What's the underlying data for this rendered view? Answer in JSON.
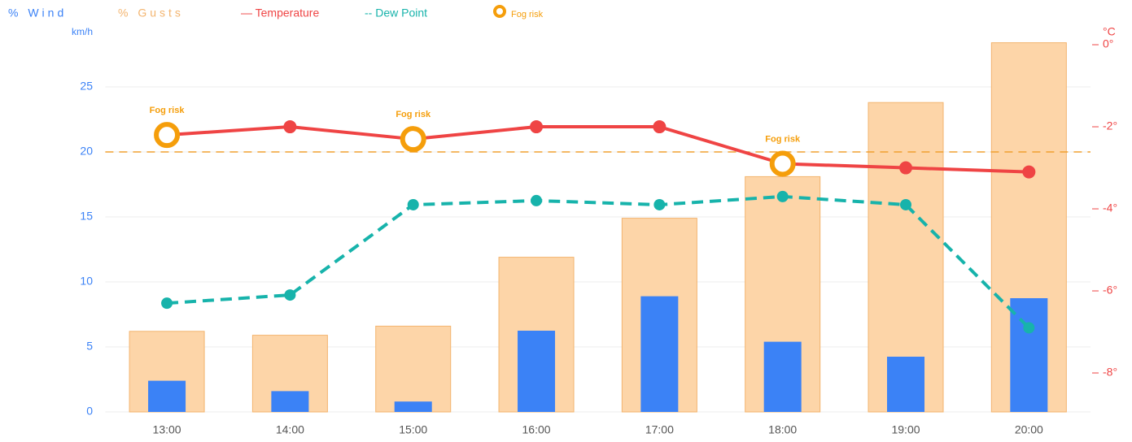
{
  "chart_data": {
    "type": "bar_line",
    "categories": [
      "13:00",
      "14:00",
      "15:00",
      "16:00",
      "17:00",
      "18:00",
      "19:00",
      "20:00"
    ],
    "ylabel": "km/h",
    "y2label": "°C",
    "ylim": [
      0,
      28.5
    ],
    "yticks": [
      0,
      5,
      10,
      15,
      20,
      25
    ],
    "y2lim": [
      -8.95,
      0.08
    ],
    "y2ticks": [
      {
        "value": 0,
        "label": "0°"
      },
      {
        "value": -2,
        "label": "-2°"
      },
      {
        "value": -4,
        "label": "-4°"
      },
      {
        "value": -6,
        "label": "-6°"
      },
      {
        "value": -8,
        "label": "-8°"
      }
    ],
    "grid": true,
    "reference_line": {
      "value": 20,
      "color": "#f0a030"
    },
    "series": [
      {
        "name": "% Gusts",
        "kind": "bar",
        "color": "#fdd5a8",
        "edge": "#f3b46e",
        "values": [
          6.2,
          5.9,
          6.6,
          11.9,
          14.9,
          18.1,
          23.8,
          28.4
        ]
      },
      {
        "name": "% Wind",
        "kind": "bar",
        "color": "#3b82f6",
        "values": [
          2.4,
          1.6,
          0.8,
          6.25,
          8.9,
          5.4,
          4.25,
          8.75
        ]
      },
      {
        "name": "— Temperature",
        "kind": "line",
        "axis": "y2",
        "color": "#ef4444",
        "values": [
          -2.2,
          -2.0,
          -2.3,
          -2.0,
          -2.0,
          -2.9,
          -3.0,
          -3.1
        ]
      },
      {
        "name": "-- Dew Point",
        "kind": "line",
        "axis": "y2",
        "dashed": true,
        "color": "#17b3ab",
        "values": [
          -6.3,
          -6.1,
          -3.9,
          -3.8,
          -3.9,
          -3.7,
          -3.9,
          -6.9
        ]
      }
    ],
    "fog_risk": {
      "name": "Fog risk",
      "color": "#f59e0b",
      "indices": [
        0,
        2,
        5
      ],
      "labels": [
        "Fog risk",
        "Fog risk",
        "Fog risk"
      ]
    }
  }
}
